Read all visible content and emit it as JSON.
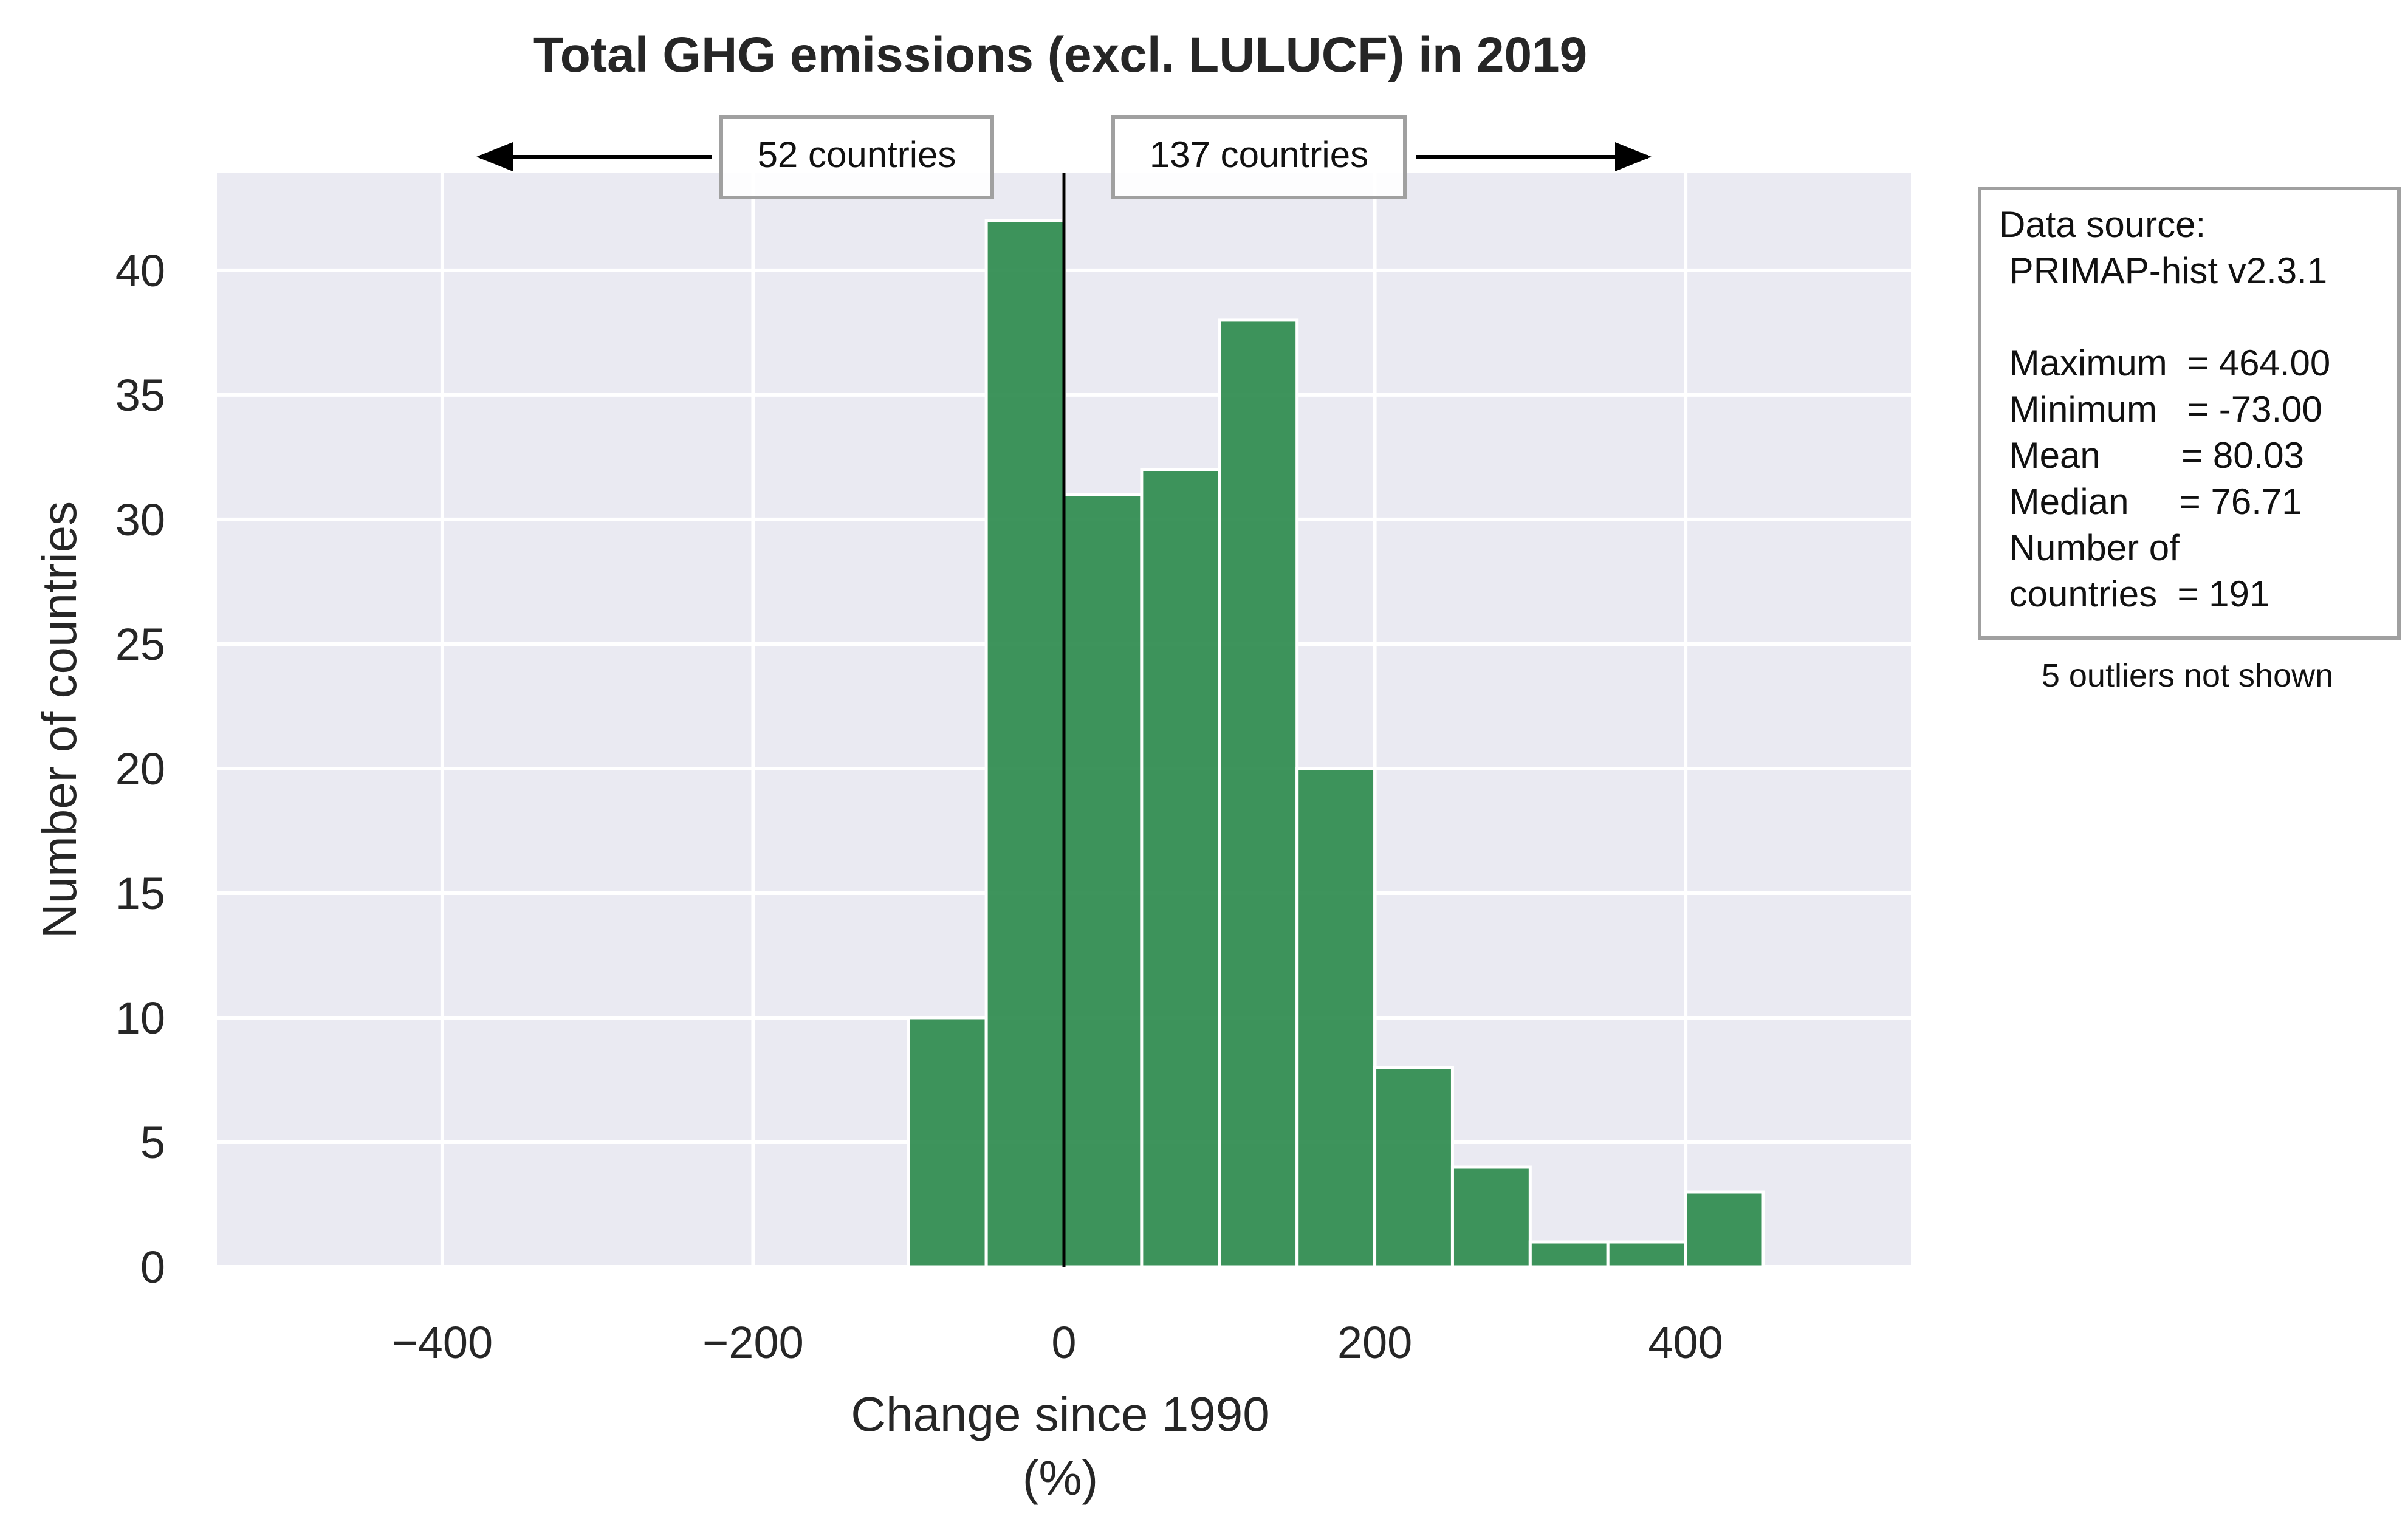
{
  "chart_data": {
    "type": "bar",
    "title": "Total GHG emissions (excl. LULUCF) in 2019",
    "xlabel_line1": "Change since 1990",
    "xlabel_line2": "(%)",
    "ylabel": "Number of countries",
    "xlim": [
      -545,
      545
    ],
    "ylim": [
      0,
      43.9
    ],
    "xticks": [
      -400,
      -200,
      0,
      200,
      400
    ],
    "xtick_labels": [
      "−400",
      "−200",
      "0",
      "200",
      "400"
    ],
    "yticks": [
      0,
      5,
      10,
      15,
      20,
      25,
      30,
      35,
      40
    ],
    "ytick_labels": [
      "0",
      "5",
      "10",
      "15",
      "20",
      "25",
      "30",
      "35",
      "40"
    ],
    "grid": true,
    "bin_width": 50,
    "bin_starts": [
      -100,
      -50,
      0,
      50,
      100,
      150,
      200,
      250,
      300,
      350,
      400
    ],
    "values": [
      10,
      42,
      31,
      32,
      38,
      20,
      8,
      4,
      1,
      1,
      3
    ],
    "bar_color": "#2e8b4e",
    "zero_line_x": 0,
    "annotations": {
      "left_label": "52 countries",
      "right_label": "137 countries"
    },
    "stats_box": {
      "lines": [
        "Data source:",
        " PRIMAP-hist v2.3.1",
        "",
        " Maximum  = 464.00",
        " Minimum   = -73.00",
        " Mean        = 80.03",
        " Median     = 76.71",
        " Number of",
        " countries  = 191"
      ]
    },
    "outliers_note": "5 outliers not shown"
  },
  "colors": {
    "plot_background": "#eaeaf2",
    "grid": "#ffffff",
    "text": "#262626",
    "box_border": "#a0a0a0"
  }
}
